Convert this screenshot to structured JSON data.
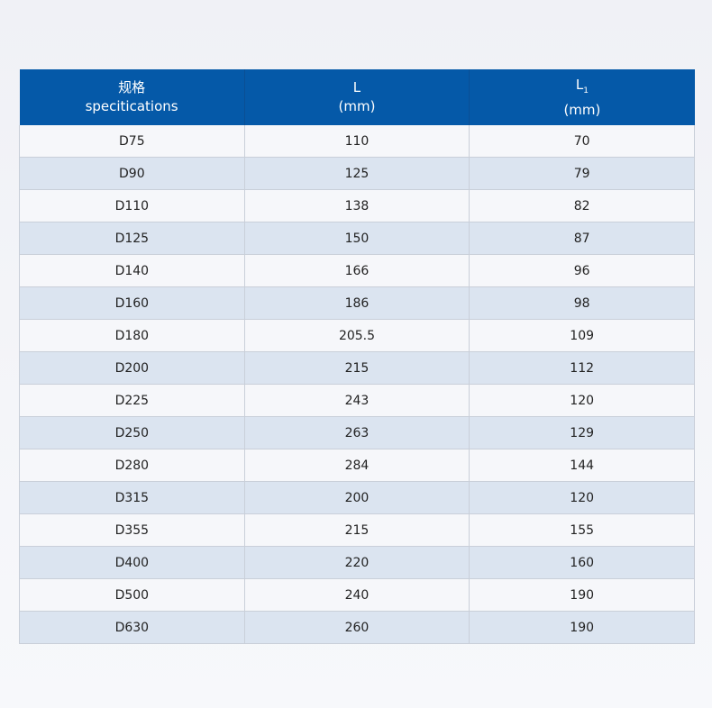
{
  "header": {
    "spec_cn": "规格",
    "spec_en": "specitications",
    "l": "L",
    "l_unit": "(mm)",
    "l1": "L",
    "l1_sub": "1",
    "l1_unit": "(mm)"
  },
  "rows": [
    [
      "D75",
      "110",
      "70"
    ],
    [
      "D90",
      "125",
      "79"
    ],
    [
      "D110",
      "138",
      "82"
    ],
    [
      "D125",
      "150",
      "87"
    ],
    [
      "D140",
      "166",
      "96"
    ],
    [
      "D160",
      "186",
      "98"
    ],
    [
      "D180",
      "205.5",
      "109"
    ],
    [
      "D200",
      "215",
      "112"
    ],
    [
      "D225",
      "243",
      "120"
    ],
    [
      "D250",
      "263",
      "129"
    ],
    [
      "D280",
      "284",
      "144"
    ],
    [
      "D315",
      "200",
      "120"
    ],
    [
      "D355",
      "215",
      "155"
    ],
    [
      "D400",
      "220",
      "160"
    ],
    [
      "D500",
      "240",
      "190"
    ],
    [
      "D630",
      "260",
      "190"
    ]
  ],
  "colors": {
    "header": "#0559a8",
    "row_alt": "#dbe4f0",
    "row": "#f6f7fa"
  }
}
